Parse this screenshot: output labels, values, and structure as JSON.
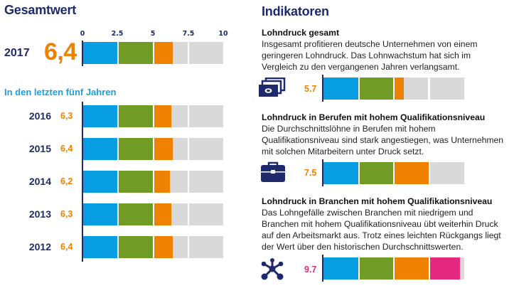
{
  "colors": {
    "blue": "#069ee0",
    "green": "#6f9b26",
    "orange": "#ee8100",
    "magenta": "#e5287f",
    "gray": "#d9d9d9",
    "navy": "#1e2a6b",
    "light_blue_text": "#1b9fe0"
  },
  "left": {
    "title": "Gesamtwert",
    "current": {
      "year": "2017",
      "value_label": "6,4"
    },
    "history_title": "In den letzten fünf Jahren",
    "history": [
      {
        "year": "2016",
        "value_label": "6,3"
      },
      {
        "year": "2015",
        "value_label": "6,4"
      },
      {
        "year": "2014",
        "value_label": "6,2"
      },
      {
        "year": "2013",
        "value_label": "6,3"
      },
      {
        "year": "2012",
        "value_label": "6,4"
      }
    ]
  },
  "right": {
    "title": "Indikatoren",
    "indicators": [
      {
        "title": "Lohndruck gesamt",
        "text": "Insgesamt profitieren deutsche Unternehmen von einem geringeren Lohndruck. Das Lohnwachstum hat sich im Vergleich zu den vergangenen Jahren verlangsamt.",
        "icon": "money-stack-icon",
        "value_label": "5.7",
        "value_color": "#ee8100"
      },
      {
        "title": "Lohndruck in Berufen mit hohem Qualifikationsniveau",
        "text": "Die Durchschnittslöhne in Berufen mit hohem Qualifikationsniveau sind stark angestiegen, was Unternehmen mit solchen Mitarbeitern unter Druck setzt.",
        "icon": "briefcase-icon",
        "value_label": "7.5",
        "value_color": "#ee8100"
      },
      {
        "title": "Lohndruck in Branchen mit hohem Qualifikationsniveau",
        "text": "Das Lohngefälle zwischen Branchen mit niedrigem und Branchen mit hohem Qualifikationsniveau übt weiterhin Druck auf den Arbeitsmarkt aus. Trotz eines leichten Rückgangs liegt der Wert über den historischen Durchschnittswerten.",
        "icon": "network-icon",
        "value_label": "9.7",
        "value_color": "#e5287f"
      }
    ]
  },
  "chart_data": [
    {
      "type": "bar",
      "title": "Gesamtwert",
      "orientation": "horizontal",
      "xlim": [
        0,
        10
      ],
      "ticks": [
        0,
        2.5,
        5,
        7.5,
        10
      ],
      "tick_labels": [
        "0",
        "2.5",
        "5",
        "7.5",
        "10"
      ],
      "band_boundaries": [
        0,
        2.5,
        5,
        7.5,
        10
      ],
      "band_colors": [
        "#069ee0",
        "#6f9b26",
        "#ee8100",
        "#e5287f"
      ],
      "categories": [
        "2017",
        "2016",
        "2015",
        "2014",
        "2013",
        "2012"
      ],
      "values": [
        6.4,
        6.3,
        6.4,
        6.2,
        6.3,
        6.4
      ]
    },
    {
      "type": "bar",
      "title": "Indikatoren",
      "orientation": "horizontal",
      "xlim": [
        0,
        10
      ],
      "band_boundaries": [
        0,
        2.5,
        5,
        7.5,
        10
      ],
      "band_colors": [
        "#069ee0",
        "#6f9b26",
        "#ee8100",
        "#e5287f"
      ],
      "categories": [
        "Lohndruck gesamt",
        "Lohndruck in Berufen mit hohem Qualifikationsniveau",
        "Lohndruck in Branchen mit hohem Qualifikationsniveau"
      ],
      "values": [
        5.7,
        7.5,
        9.7
      ]
    }
  ]
}
